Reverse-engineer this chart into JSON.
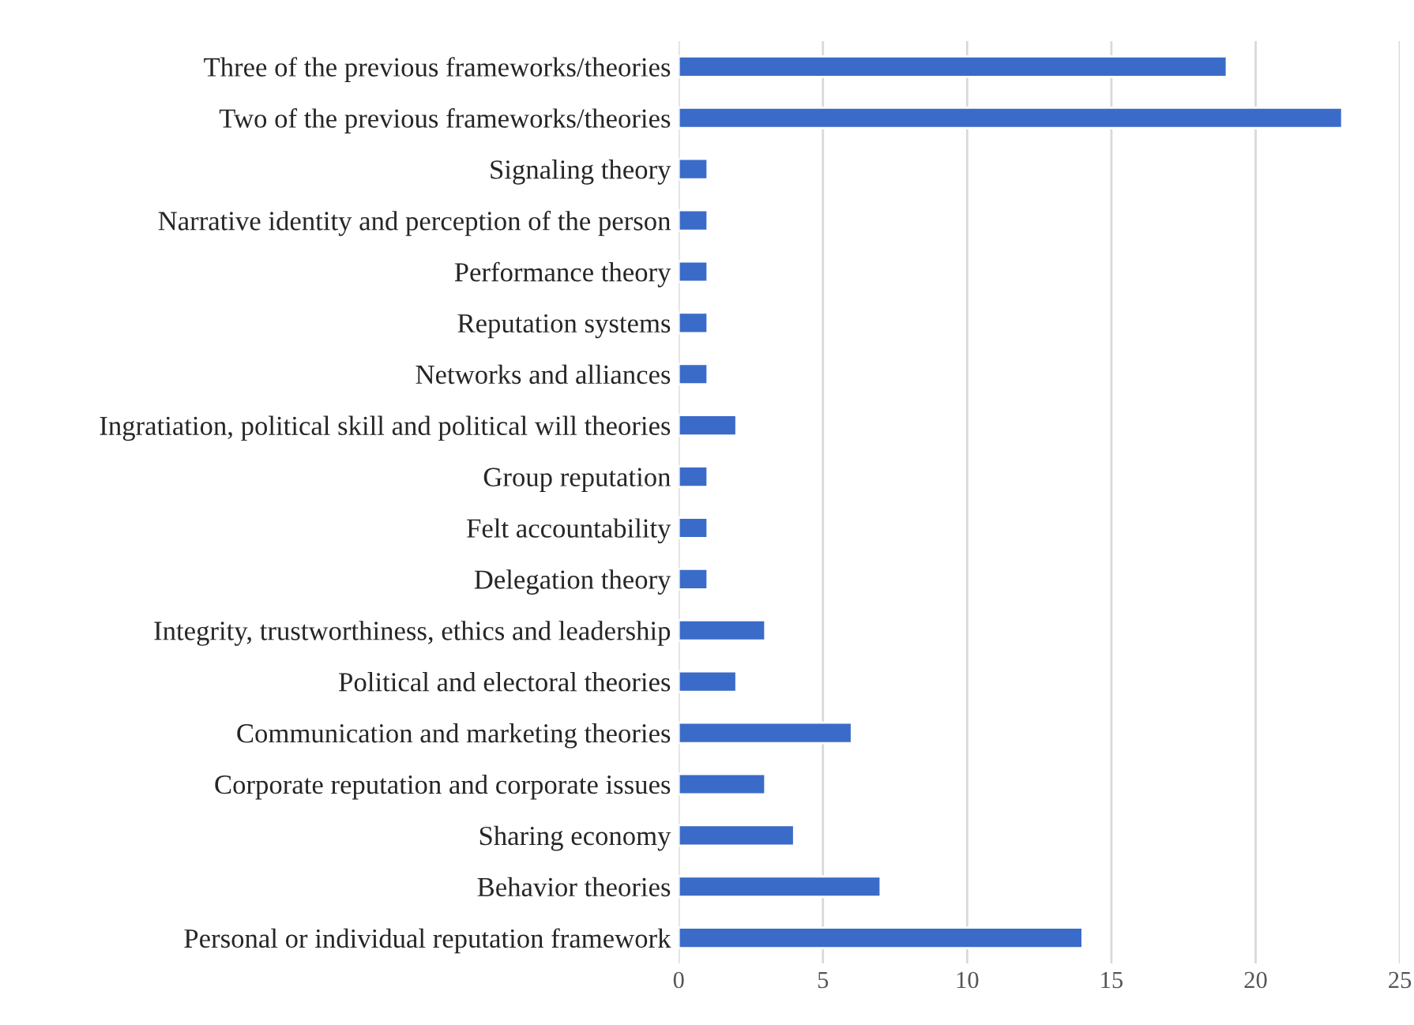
{
  "chart_data": {
    "type": "bar",
    "orientation": "horizontal",
    "categories": [
      "Three of the previous frameworks/theories",
      "Two of the previous frameworks/theories",
      "Signaling theory",
      "Narrative identity and perception of the person",
      "Performance theory",
      "Reputation systems",
      "Networks and alliances",
      "Ingratiation, political skill and political will theories",
      "Group reputation",
      "Felt accountability",
      "Delegation theory",
      "Integrity, trustworthiness, ethics and leadership",
      "Political and electoral theories",
      "Communication and marketing theories",
      "Corporate reputation and corporate issues",
      "Sharing economy",
      "Behavior theories",
      "Personal or individual reputation framework"
    ],
    "values": [
      19,
      23,
      1,
      1,
      1,
      1,
      1,
      2,
      1,
      1,
      1,
      3,
      2,
      6,
      3,
      4,
      7,
      14
    ],
    "color": "#3a6bc8",
    "xlim": [
      0,
      25
    ],
    "xticks": [
      0,
      5,
      10,
      15,
      20,
      25
    ],
    "grid": "x",
    "legend": false
  }
}
